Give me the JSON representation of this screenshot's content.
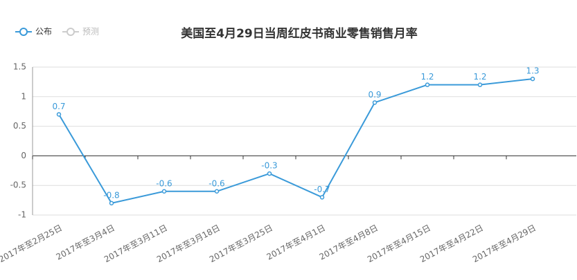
{
  "chart_data": {
    "type": "line",
    "title": "美国至4月29日当周红皮书商业零售销售月率",
    "categories": [
      "2017年至2月25日",
      "2017年至3月4日",
      "2017年至3月11日",
      "2017年至3月18日",
      "2017年至3月25日",
      "2017年至4月1日",
      "2017年至4月8日",
      "2017年至4月15日",
      "2017年至4月22日",
      "2017年至4月29日"
    ],
    "series": [
      {
        "name": "公布",
        "color": "#3a9ad9",
        "values": [
          0.7,
          -0.8,
          -0.6,
          -0.6,
          -0.3,
          -0.7,
          0.9,
          1.2,
          1.2,
          1.3
        ]
      },
      {
        "name": "预测",
        "color": "#cccccc",
        "values": [
          null,
          null,
          null,
          null,
          null,
          null,
          null,
          null,
          null,
          null
        ]
      }
    ],
    "ylim": [
      -1,
      1.5
    ],
    "yticks": [
      -1,
      -0.5,
      0,
      0.5,
      1,
      1.5
    ],
    "grid": true,
    "legend": "top-left"
  }
}
